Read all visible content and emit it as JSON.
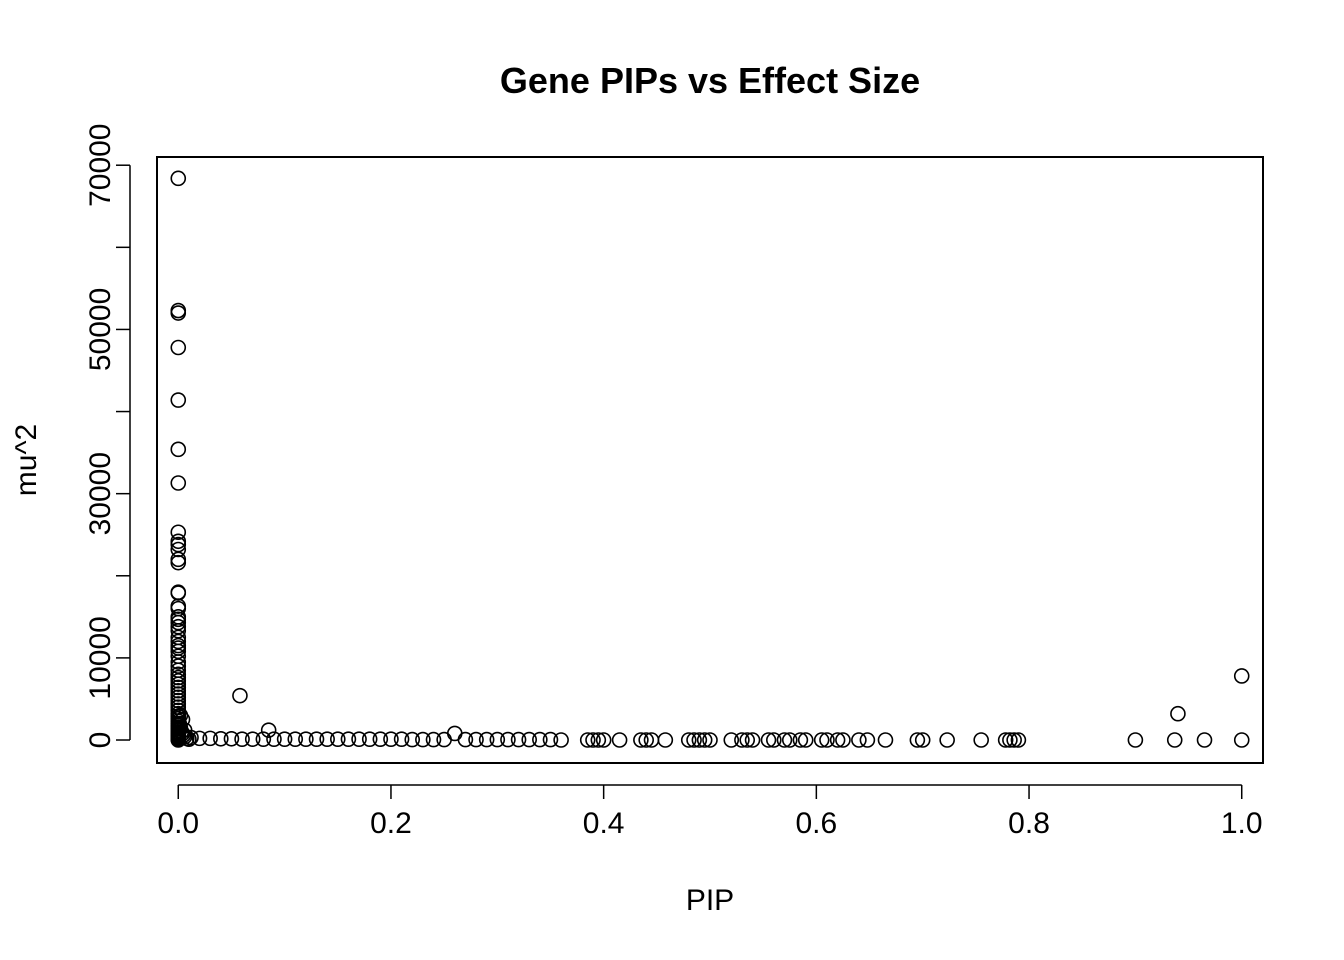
{
  "chart_data": {
    "type": "scatter",
    "title": "Gene PIPs vs Effect Size",
    "xlabel": "PIP",
    "ylabel": "mu^2",
    "xlim": [
      -0.02,
      1.02
    ],
    "ylim": [
      -2800,
      71000
    ],
    "x_ticks": [
      {
        "value": 0.0,
        "label": "0.0"
      },
      {
        "value": 0.2,
        "label": "0.2"
      },
      {
        "value": 0.4,
        "label": "0.4"
      },
      {
        "value": 0.6,
        "label": "0.6"
      },
      {
        "value": 0.8,
        "label": "0.8"
      },
      {
        "value": 1.0,
        "label": "1.0"
      }
    ],
    "y_ticks": [
      {
        "value": 0,
        "label": "0"
      },
      {
        "value": 10000,
        "label": "10000"
      },
      {
        "value": 20000,
        "label": ""
      },
      {
        "value": 30000,
        "label": "30000"
      },
      {
        "value": 40000,
        "label": ""
      },
      {
        "value": 50000,
        "label": "50000"
      },
      {
        "value": 60000,
        "label": ""
      },
      {
        "value": 70000,
        "label": "70000"
      }
    ],
    "grid": false,
    "legend": "none",
    "series": [
      {
        "x": [
          0.0,
          0.0,
          0.0,
          0.0,
          0.0,
          0.0,
          0.0,
          0.0,
          0.0,
          0.0,
          0.0,
          0.0,
          0.0,
          0.0,
          0.0,
          0.0,
          0.0,
          0.0,
          0.0,
          0.0,
          0.0,
          0.0,
          0.0,
          0.0,
          0.0,
          0.0,
          0.0,
          0.0,
          0.0,
          0.0,
          0.0,
          0.0,
          0.0,
          0.0,
          0.0,
          0.0,
          0.0,
          0.0,
          0.0,
          0.0,
          0.0,
          0.0,
          0.0,
          0.0,
          0.0,
          0.0,
          0.0,
          0.0,
          0.0,
          0.0,
          0.0,
          0.0,
          0.0,
          0.0,
          0.0,
          0.0,
          0.0,
          0.0,
          0.0,
          0.0,
          0.0,
          0.0,
          0.0,
          0.001,
          0.002,
          0.003,
          0.004,
          0.005,
          0.006,
          0.008,
          0.01,
          0.002,
          0.004,
          0.006,
          0.058,
          0.085,
          0.26,
          0.012,
          0.02,
          0.03,
          0.04,
          0.05,
          0.06,
          0.07,
          0.08,
          0.09,
          0.1,
          0.11,
          0.12,
          0.13,
          0.14,
          0.15,
          0.16,
          0.17,
          0.18,
          0.19,
          0.2,
          0.21,
          0.22,
          0.23,
          0.24,
          0.25,
          0.27,
          0.28,
          0.29,
          0.3,
          0.31,
          0.32,
          0.33,
          0.34,
          0.35,
          0.36,
          0.385,
          0.39,
          0.395,
          0.4,
          0.415,
          0.435,
          0.44,
          0.445,
          0.458,
          0.48,
          0.485,
          0.49,
          0.495,
          0.5,
          0.52,
          0.53,
          0.535,
          0.54,
          0.555,
          0.56,
          0.57,
          0.575,
          0.585,
          0.59,
          0.605,
          0.61,
          0.62,
          0.625,
          0.64,
          0.648,
          0.665,
          0.695,
          0.7,
          0.723,
          0.755,
          0.778,
          0.782,
          0.786,
          0.79,
          0.9,
          0.937,
          0.94,
          0.965,
          1.0,
          1.0
        ],
        "y": [
          68400,
          52300,
          52000,
          47800,
          41400,
          35400,
          31300,
          25300,
          24200,
          23800,
          23200,
          22000,
          21600,
          18000,
          17900,
          16300,
          16000,
          15000,
          14700,
          14300,
          13800,
          13300,
          12500,
          12000,
          11500,
          11200,
          10800,
          10200,
          9500,
          9000,
          8500,
          8000,
          7600,
          7200,
          6800,
          6400,
          6000,
          5600,
          5200,
          4800,
          4400,
          4000,
          3600,
          3200,
          2900,
          2600,
          2300,
          2000,
          1800,
          1600,
          1400,
          1200,
          1000,
          900,
          800,
          700,
          600,
          500,
          400,
          300,
          200,
          100,
          0,
          2000,
          1500,
          1000,
          800,
          600,
          400,
          200,
          100,
          3000,
          2500,
          1200,
          5400,
          1200,
          800,
          300,
          200,
          200,
          150,
          150,
          100,
          100,
          100,
          100,
          100,
          100,
          100,
          100,
          100,
          100,
          100,
          100,
          100,
          100,
          100,
          100,
          50,
          50,
          50,
          50,
          50,
          50,
          50,
          50,
          50,
          50,
          50,
          50,
          50,
          0,
          0,
          0,
          0,
          0,
          0,
          0,
          0,
          0,
          0,
          0,
          0,
          0,
          0,
          0,
          0,
          0,
          0,
          0,
          0,
          0,
          0,
          0,
          0,
          0,
          0,
          0,
          0,
          0,
          0,
          0,
          0,
          0,
          0,
          0,
          0,
          0,
          0,
          0,
          0,
          0,
          0,
          3200,
          0,
          0,
          7800
        ]
      }
    ]
  }
}
